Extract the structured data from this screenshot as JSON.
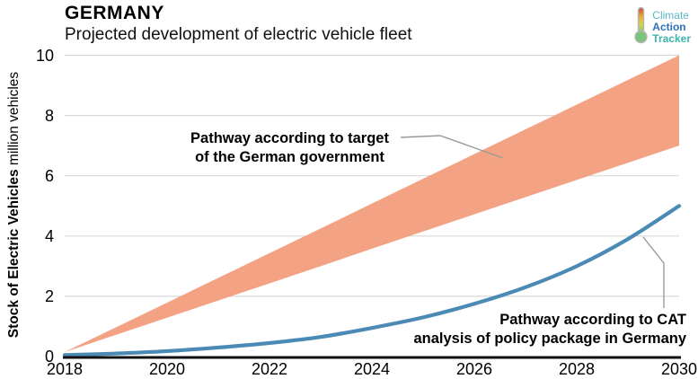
{
  "header": {
    "title": "GERMANY",
    "subtitle": "Projected development of electric vehicle fleet"
  },
  "logo": {
    "word1": "Climate",
    "word2": "Action",
    "word3": "Tracker"
  },
  "colors": {
    "band": "#f4a284",
    "line": "#4a8ab5",
    "grid": "#d9d9d9",
    "axis": "#111111",
    "callout": "#999999",
    "logo_climate": "#5bb7c5",
    "logo_action": "#2d72b9",
    "logo_tracker": "#3db5ae"
  },
  "annotations": {
    "target": {
      "line1": "Pathway according to target",
      "line2": "of the German government"
    },
    "cat": {
      "line1": "Pathway according to CAT",
      "line2": "analysis of policy package in Germany"
    }
  },
  "chart_data": {
    "type": "area",
    "title": "GERMANY — Projected development of electric vehicle fleet",
    "xlabel": "",
    "ylabel_bold": "Stock of Electric Vehicles",
    "ylabel_unit": "million vehicles",
    "xlim": [
      2018,
      2030
    ],
    "ylim": [
      0,
      10
    ],
    "xticks": [
      2018,
      2020,
      2022,
      2024,
      2026,
      2028,
      2030
    ],
    "yticks": [
      0,
      2,
      4,
      6,
      8,
      10
    ],
    "grid": "horizontal gridlines at y=2,4,6,8,10",
    "legend_position": "annotated directly on chart",
    "x": [
      2018,
      2019,
      2020,
      2021,
      2022,
      2023,
      2024,
      2025,
      2026,
      2027,
      2028,
      2029,
      2030
    ],
    "series": [
      {
        "name": "Pathway according to target of the German government",
        "type": "band",
        "color": "#f4a284",
        "upper": [
          0.15,
          0.97,
          1.79,
          2.61,
          3.43,
          4.25,
          5.08,
          5.9,
          6.72,
          7.54,
          8.36,
          9.18,
          10.0
        ],
        "lower": [
          0.15,
          0.72,
          1.29,
          1.86,
          2.43,
          3.0,
          3.58,
          4.15,
          4.72,
          5.29,
          5.86,
          6.43,
          7.0
        ]
      },
      {
        "name": "Pathway according to CAT analysis of policy package in Germany",
        "type": "line",
        "color": "#4a8ab5",
        "values": [
          0.05,
          0.1,
          0.18,
          0.3,
          0.45,
          0.65,
          0.95,
          1.3,
          1.75,
          2.3,
          3.0,
          3.9,
          5.0
        ]
      }
    ]
  }
}
